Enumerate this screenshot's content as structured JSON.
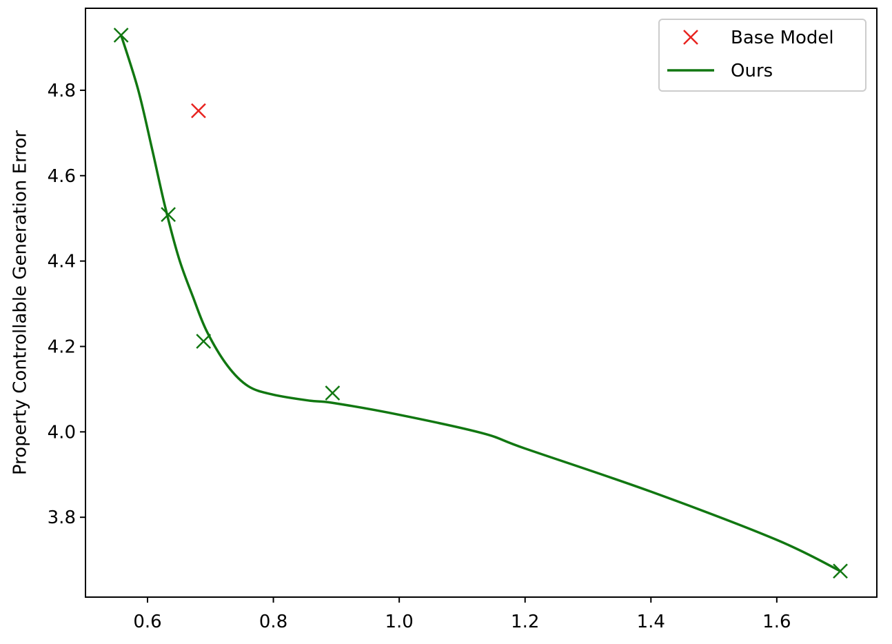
{
  "chart_data": {
    "type": "scatter",
    "y_label": "Property Controllable Generation Error",
    "xlim": [
      0.5014,
      1.759
    ],
    "ylim": [
      3.613,
      4.992
    ],
    "xticks": [
      0.6,
      0.8,
      {
        "value": 1.0,
        "label": "1.0"
      },
      1.2,
      1.4,
      1.6
    ],
    "yticks": [
      3.8,
      {
        "value": 4.0,
        "label": "4.0"
      },
      4.2,
      4.4,
      4.6,
      4.8
    ],
    "legend": "upper right",
    "series": [
      {
        "name": "Base Model",
        "color": "#e8231f",
        "marker": "x",
        "x": [
          0.681
        ],
        "values": [
          4.752
        ]
      },
      {
        "name": "Ours",
        "color": "#117711",
        "points": {
          "x": [
            0.558,
            0.633,
            0.689,
            0.894,
            1.701
          ],
          "values": [
            4.929,
            4.509,
            4.212,
            4.091,
            3.674
          ]
        },
        "x": [
          0.558,
          0.585,
          0.607,
          0.628,
          0.65,
          0.672,
          0.694,
          0.727,
          0.76,
          0.8,
          0.858,
          0.894,
          1.0,
          1.132,
          1.2,
          1.4,
          1.6,
          1.701
        ],
        "values": [
          4.929,
          4.802,
          4.664,
          4.527,
          4.406,
          4.317,
          4.236,
          4.155,
          4.107,
          4.087,
          4.073,
          4.068,
          4.04,
          3.997,
          3.961,
          3.86,
          3.747,
          3.674
        ]
      }
    ]
  }
}
